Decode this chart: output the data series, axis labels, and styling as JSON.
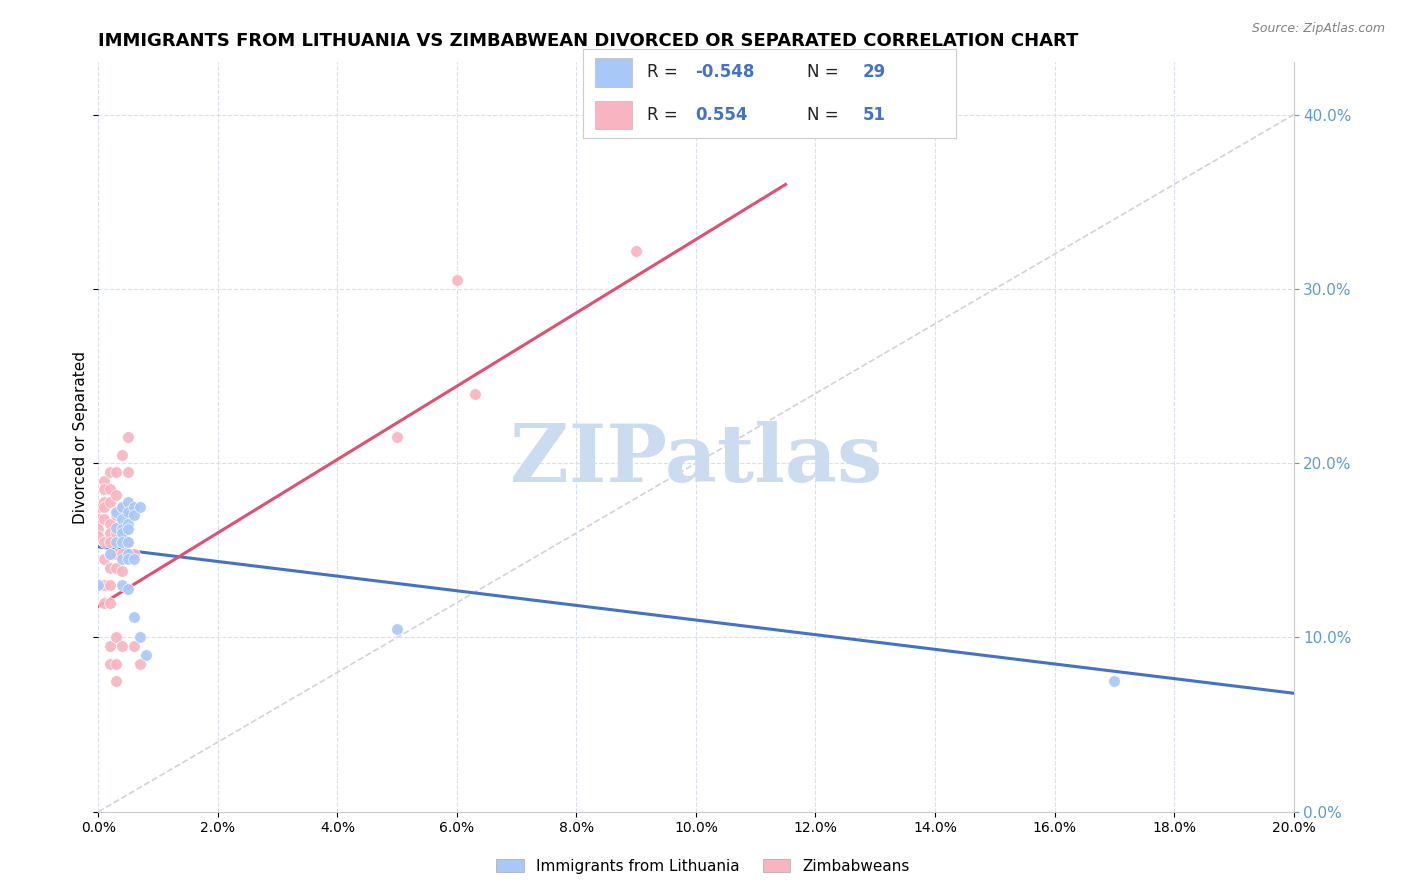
{
  "title": "IMMIGRANTS FROM LITHUANIA VS ZIMBABWEAN DIVORCED OR SEPARATED CORRELATION CHART",
  "source": "Source: ZipAtlas.com",
  "ylabel": "Divorced or Separated",
  "legend_label1": "Immigrants from Lithuania",
  "legend_label2": "Zimbabweans",
  "watermark": "ZIPatlas",
  "blue_scatter": [
    [
      0.0,
      0.13
    ],
    [
      0.002,
      0.148
    ],
    [
      0.003,
      0.172
    ],
    [
      0.003,
      0.163
    ],
    [
      0.003,
      0.155
    ],
    [
      0.004,
      0.175
    ],
    [
      0.004,
      0.168
    ],
    [
      0.004,
      0.162
    ],
    [
      0.004,
      0.16
    ],
    [
      0.004,
      0.155
    ],
    [
      0.004,
      0.145
    ],
    [
      0.004,
      0.13
    ],
    [
      0.005,
      0.178
    ],
    [
      0.005,
      0.172
    ],
    [
      0.005,
      0.165
    ],
    [
      0.005,
      0.162
    ],
    [
      0.005,
      0.155
    ],
    [
      0.005,
      0.148
    ],
    [
      0.005,
      0.145
    ],
    [
      0.005,
      0.128
    ],
    [
      0.006,
      0.175
    ],
    [
      0.006,
      0.17
    ],
    [
      0.006,
      0.145
    ],
    [
      0.006,
      0.112
    ],
    [
      0.007,
      0.175
    ],
    [
      0.007,
      0.1
    ],
    [
      0.008,
      0.09
    ],
    [
      0.05,
      0.105
    ],
    [
      0.17,
      0.075
    ]
  ],
  "pink_scatter": [
    [
      0.0,
      0.175
    ],
    [
      0.0,
      0.168
    ],
    [
      0.0,
      0.162
    ],
    [
      0.0,
      0.158
    ],
    [
      0.001,
      0.19
    ],
    [
      0.001,
      0.185
    ],
    [
      0.001,
      0.178
    ],
    [
      0.001,
      0.175
    ],
    [
      0.001,
      0.168
    ],
    [
      0.001,
      0.155
    ],
    [
      0.001,
      0.145
    ],
    [
      0.001,
      0.13
    ],
    [
      0.001,
      0.12
    ],
    [
      0.002,
      0.195
    ],
    [
      0.002,
      0.185
    ],
    [
      0.002,
      0.178
    ],
    [
      0.002,
      0.165
    ],
    [
      0.002,
      0.16
    ],
    [
      0.002,
      0.155
    ],
    [
      0.002,
      0.148
    ],
    [
      0.002,
      0.14
    ],
    [
      0.002,
      0.13
    ],
    [
      0.002,
      0.12
    ],
    [
      0.002,
      0.095
    ],
    [
      0.002,
      0.085
    ],
    [
      0.003,
      0.195
    ],
    [
      0.003,
      0.182
    ],
    [
      0.003,
      0.17
    ],
    [
      0.003,
      0.16
    ],
    [
      0.003,
      0.148
    ],
    [
      0.003,
      0.14
    ],
    [
      0.003,
      0.1
    ],
    [
      0.003,
      0.085
    ],
    [
      0.003,
      0.075
    ],
    [
      0.004,
      0.205
    ],
    [
      0.004,
      0.175
    ],
    [
      0.004,
      0.162
    ],
    [
      0.004,
      0.148
    ],
    [
      0.004,
      0.138
    ],
    [
      0.004,
      0.095
    ],
    [
      0.005,
      0.215
    ],
    [
      0.005,
      0.195
    ],
    [
      0.005,
      0.17
    ],
    [
      0.005,
      0.155
    ],
    [
      0.006,
      0.148
    ],
    [
      0.006,
      0.095
    ],
    [
      0.007,
      0.085
    ],
    [
      0.05,
      0.215
    ],
    [
      0.06,
      0.305
    ],
    [
      0.063,
      0.24
    ],
    [
      0.09,
      0.322
    ]
  ],
  "blue_line_x": [
    0.0,
    0.2
  ],
  "blue_line_y": [
    0.152,
    0.068
  ],
  "pink_line_x": [
    0.0,
    0.115
  ],
  "pink_line_y": [
    0.118,
    0.36
  ],
  "diagonal_line_x": [
    0.0,
    0.2
  ],
  "diagonal_line_y": [
    0.0,
    0.4
  ],
  "xlim": [
    0.0,
    0.2
  ],
  "ylim": [
    0.0,
    0.43
  ],
  "blue_color": "#a8c8f8",
  "pink_color": "#f8b4c0",
  "blue_line_color": "#4472c4",
  "pink_line_color": "#e05070",
  "diagonal_color": "#c8c8c8",
  "grid_color": "#d8e0ec",
  "background_color": "#ffffff",
  "title_fontsize": 13,
  "watermark_color": "#ccdcf0",
  "legend_blue_r_label": "R = ",
  "legend_blue_r_val": "-0.548",
  "legend_blue_n_label": "N = ",
  "legend_blue_n_val": "29",
  "legend_pink_r_label": "R =  ",
  "legend_pink_r_val": "0.554",
  "legend_pink_n_label": "N = ",
  "legend_pink_n_val": "51",
  "legend_text_color": "#4472c4",
  "legend_label_color": "#222222"
}
